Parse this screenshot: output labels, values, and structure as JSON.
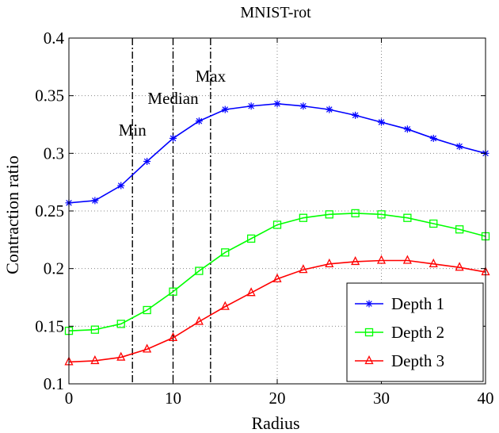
{
  "chart_data": {
    "type": "line",
    "title": "MNIST-rot",
    "xlabel": "Radius",
    "ylabel": "Contraction ratio",
    "xlim": [
      0,
      40
    ],
    "ylim": [
      0.1,
      0.4
    ],
    "x_ticks": [
      0,
      10,
      20,
      30,
      40
    ],
    "x_tick_labels": [
      "0",
      "10",
      "20",
      "30",
      "40"
    ],
    "y_ticks": [
      0.1,
      0.15,
      0.2,
      0.25,
      0.3,
      0.35,
      0.4
    ],
    "y_tick_labels": [
      "0.1",
      "0.15",
      "0.2",
      "0.25",
      "0.3",
      "0.35",
      "0.4"
    ],
    "grid": true,
    "legend_position": "bottom-right",
    "x": [
      0,
      2.5,
      5,
      7.5,
      10,
      12.5,
      15,
      17.5,
      20,
      22.5,
      25,
      27.5,
      30,
      32.5,
      35,
      37.5,
      40
    ],
    "series": [
      {
        "name": "Depth 1",
        "color": "#0000ff",
        "marker": "star",
        "values": [
          0.257,
          0.259,
          0.272,
          0.293,
          0.313,
          0.328,
          0.338,
          0.341,
          0.343,
          0.341,
          0.338,
          0.333,
          0.327,
          0.321,
          0.313,
          0.306,
          0.3
        ]
      },
      {
        "name": "Depth 2",
        "color": "#00ff00",
        "marker": "square",
        "values": [
          0.146,
          0.147,
          0.152,
          0.164,
          0.18,
          0.198,
          0.214,
          0.226,
          0.238,
          0.244,
          0.247,
          0.248,
          0.247,
          0.244,
          0.239,
          0.234,
          0.228
        ]
      },
      {
        "name": "Depth 3",
        "color": "#ff0000",
        "marker": "triangle",
        "values": [
          0.119,
          0.12,
          0.123,
          0.13,
          0.14,
          0.154,
          0.167,
          0.179,
          0.191,
          0.199,
          0.204,
          0.206,
          0.207,
          0.207,
          0.204,
          0.201,
          0.197
        ]
      }
    ],
    "vertical_lines": [
      {
        "x": 6.1,
        "label": "Min"
      },
      {
        "x": 10.0,
        "label": "Median"
      },
      {
        "x": 13.6,
        "label": "Max"
      }
    ]
  }
}
